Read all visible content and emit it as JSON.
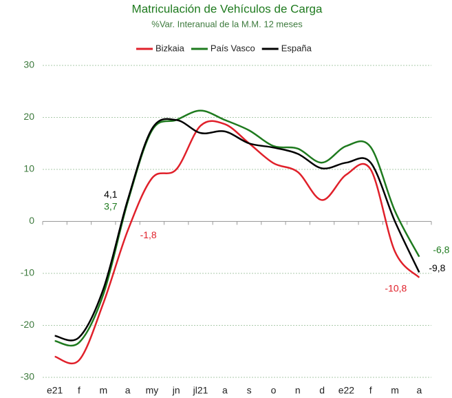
{
  "chart_data": {
    "type": "line",
    "title": "Matriculación de Vehículos de Carga",
    "subtitle": "%Var. Interanual de la M.M. 12 meses",
    "categories": [
      "e21",
      "f",
      "m",
      "a",
      "my",
      "jn",
      "jl21",
      "a",
      "s",
      "o",
      "n",
      "d",
      "e22",
      "f",
      "m",
      "a"
    ],
    "series": [
      {
        "name": "Bizkaia",
        "color": "#e0202a",
        "values": [
          -26,
          -26.7,
          -15.7,
          -1.8,
          8.3,
          10,
          18.4,
          18.7,
          15,
          11.2,
          9.5,
          4.1,
          9,
          10,
          -5.8,
          -10.8
        ],
        "value_labels": [
          null,
          null,
          null,
          "-1,8",
          null,
          null,
          null,
          null,
          null,
          null,
          null,
          null,
          null,
          null,
          null,
          "-10,8"
        ]
      },
      {
        "name": "País Vasco",
        "color": "#1e7a1e",
        "values": [
          -23,
          -23.3,
          -14,
          3.7,
          17.5,
          19.5,
          21.3,
          19.5,
          17.5,
          14.5,
          14,
          11.3,
          14.5,
          14.3,
          2,
          -6.8
        ],
        "value_labels": [
          null,
          null,
          null,
          "3,7",
          null,
          null,
          null,
          null,
          null,
          null,
          null,
          null,
          null,
          null,
          null,
          "-6,8"
        ]
      },
      {
        "name": "España",
        "color": "#000000",
        "values": [
          -22,
          -22.3,
          -13,
          4.1,
          17.8,
          19.5,
          17,
          17.3,
          15,
          14.2,
          13,
          10.2,
          11.3,
          11.3,
          0,
          -9.8
        ],
        "value_labels": [
          null,
          null,
          null,
          "4,1",
          null,
          null,
          null,
          null,
          null,
          null,
          null,
          null,
          null,
          null,
          null,
          "-9,8"
        ]
      }
    ],
    "ylim": [
      -30,
      30
    ],
    "yticks": [
      -30,
      -20,
      -10,
      0,
      10,
      20,
      30
    ],
    "grid": true,
    "legend": "top"
  }
}
